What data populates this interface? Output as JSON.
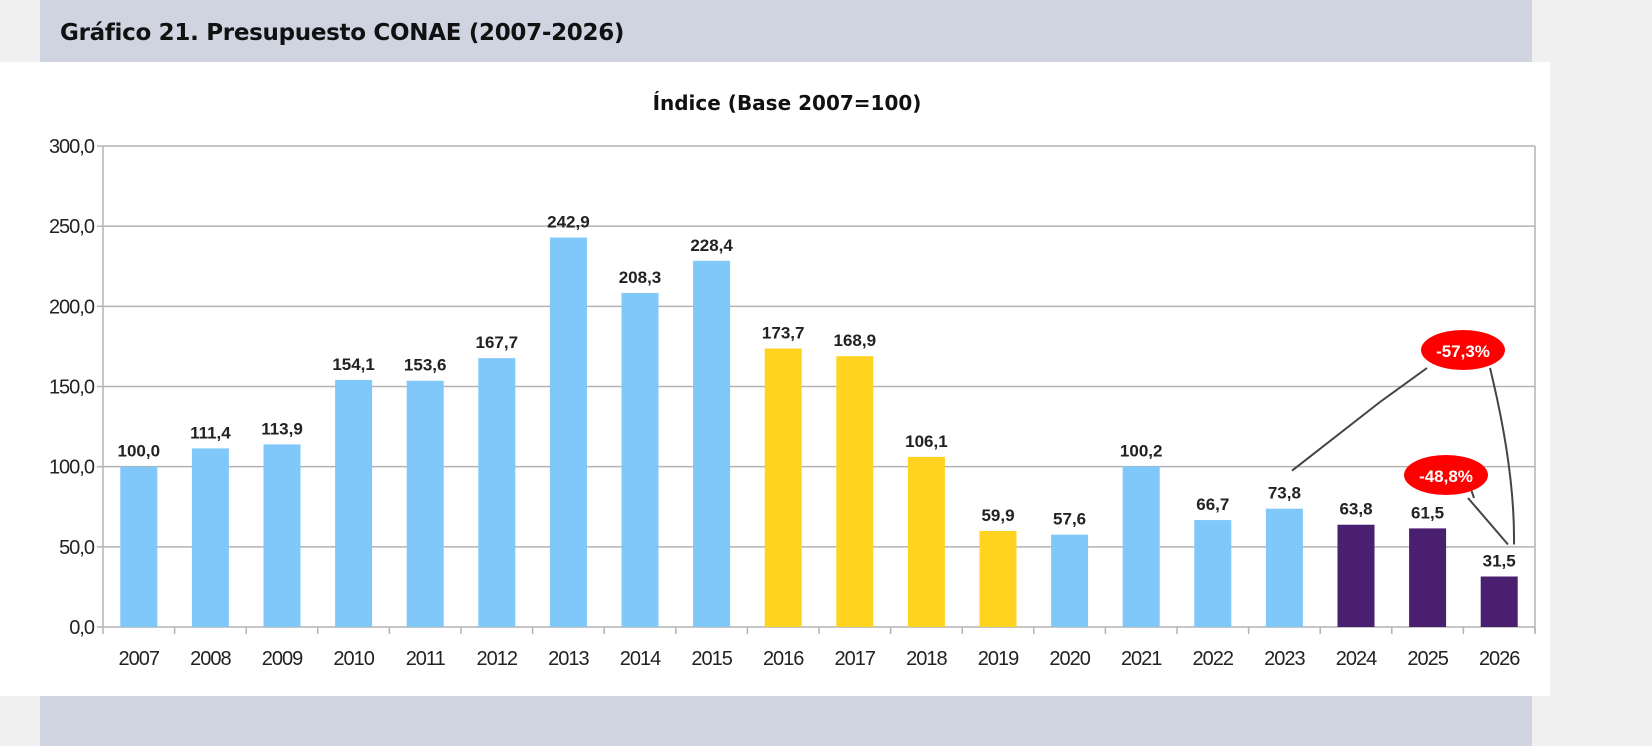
{
  "heading": "Gráfico 21. Presupuesto CONAE (2007-2026)",
  "chart_data": {
    "type": "bar",
    "title": "Índice (Base 2007=100)",
    "xlabel": "",
    "ylabel": "",
    "ylim": [
      0,
      300
    ],
    "yticks": [
      "0,0",
      "50,0",
      "100,0",
      "150,0",
      "200,0",
      "250,0",
      "300,0"
    ],
    "grid": true,
    "categories": [
      "2007",
      "2008",
      "2009",
      "2010",
      "2011",
      "2012",
      "2013",
      "2014",
      "2015",
      "2016",
      "2017",
      "2018",
      "2019",
      "2020",
      "2021",
      "2022",
      "2023",
      "2024",
      "2025",
      "2026"
    ],
    "values": [
      100.0,
      111.4,
      113.9,
      154.1,
      153.6,
      167.7,
      242.9,
      208.3,
      228.4,
      173.7,
      168.9,
      106.1,
      59.9,
      57.6,
      100.2,
      66.7,
      73.8,
      63.8,
      61.5,
      31.5
    ],
    "labels": [
      "100,0",
      "111,4",
      "113,9",
      "154,1",
      "153,6",
      "167,7",
      "242,9",
      "208,3",
      "228,4",
      "173,7",
      "168,9",
      "106,1",
      "59,9",
      "57,6",
      "100,2",
      "66,7",
      "73,8",
      "63,8",
      "61,5",
      "31,5"
    ],
    "bar_colors": [
      "#80c8fa",
      "#80c8fa",
      "#80c8fa",
      "#80c8fa",
      "#80c8fa",
      "#80c8fa",
      "#80c8fa",
      "#80c8fa",
      "#80c8fa",
      "#ffd320",
      "#ffd320",
      "#ffd320",
      "#ffd320",
      "#80c8fa",
      "#80c8fa",
      "#80c8fa",
      "#80c8fa",
      "#4b1f6f",
      "#4b1f6f",
      "#4b1f6f"
    ],
    "annotations": [
      {
        "text": "-57,3%",
        "from": "2023",
        "to": "2026",
        "color": "#ff0000"
      },
      {
        "text": "-48,8%",
        "from": "2025",
        "to": "2026",
        "color": "#ff0000"
      }
    ]
  }
}
